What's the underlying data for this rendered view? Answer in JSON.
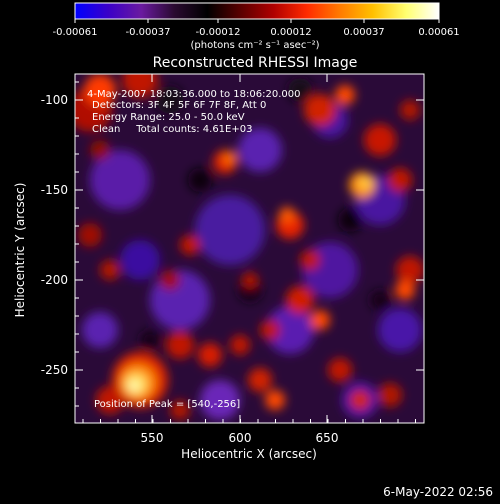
{
  "colorbar": {
    "tick_labels": [
      "-0.00061",
      "-0.00037",
      "-0.00012",
      "0.00012",
      "0.00037",
      "0.00061"
    ],
    "units": "(photons cm⁻² s⁻¹ asec⁻²)",
    "gradient": [
      "#0000ff",
      "#3a00c8",
      "#6a1aa0",
      "#2a0a30",
      "#000000",
      "#5a0000",
      "#b00000",
      "#ff2a00",
      "#ff7a00",
      "#ffc000",
      "#ffff70",
      "#ffffff"
    ]
  },
  "title": "Reconstructed RHESSI Image",
  "info_lines": [
    "4-May-2007 18:03:36.000 to 18:06:20.000",
    "Detectors: 3F 4F 5F 6F 7F 8F, Att 0",
    "Energy Range: 25.0 - 50.0 keV",
    "Clean     Total counts: 4.61E+03"
  ],
  "peak_text": "Position of Peak = [540,-256]",
  "x_axis": {
    "label": "Heliocentric X (arcsec)",
    "ticks": [
      "550",
      "600",
      "650"
    ]
  },
  "y_axis": {
    "label": "Heliocentric Y (arcsec)",
    "ticks": [
      "-100",
      "-150",
      "-200",
      "-250"
    ]
  },
  "footer": {
    "date": "6-May-2022 02:56"
  }
}
